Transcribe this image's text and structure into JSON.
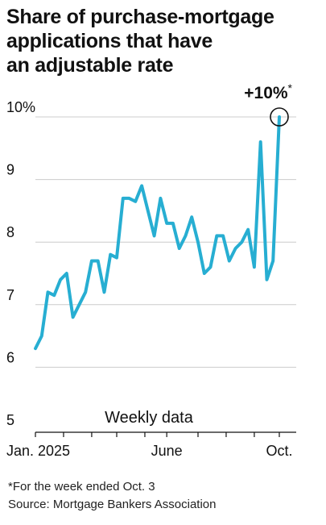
{
  "title_lines": [
    "Share of purchase-mortgage",
    "applications that have",
    "an adjustable rate"
  ],
  "footnote": "*For the week ended Oct. 3",
  "source": "Source: Mortgage Bankers Association",
  "colors": {
    "line": "#27aed2",
    "grid": "#cccccc",
    "text": "#111111"
  },
  "chart_data": {
    "type": "line",
    "title": "Share of purchase-mortgage applications that have an adjustable rate",
    "annotation_inside": "Weekly data",
    "callout": {
      "text": "+10%",
      "marker": "*"
    },
    "y_ticks": [
      "10%",
      "9",
      "8",
      "7",
      "6",
      "5"
    ],
    "y_tick_values": [
      10,
      9,
      8,
      7,
      6,
      5
    ],
    "x_ticks": [
      {
        "label": "Jan. 2025",
        "week": 0
      },
      {
        "label": "June",
        "week": 21
      },
      {
        "label": "Oct.",
        "week": 39
      }
    ],
    "ylim": [
      5,
      10
    ],
    "grid": true,
    "series": [
      {
        "values": [
          6.3,
          6.5,
          7.2,
          7.15,
          7.4,
          7.5,
          6.8,
          7.0,
          7.2,
          7.7,
          7.7,
          7.2,
          7.8,
          7.75,
          8.7,
          8.7,
          8.65,
          8.9,
          8.5,
          8.1,
          8.7,
          8.3,
          8.3,
          7.9,
          8.1,
          8.4,
          8.0,
          7.5,
          7.6,
          8.1,
          8.1,
          7.7,
          7.9,
          8.0,
          8.2,
          7.6,
          9.6,
          7.4,
          7.7,
          10.0
        ]
      }
    ]
  }
}
